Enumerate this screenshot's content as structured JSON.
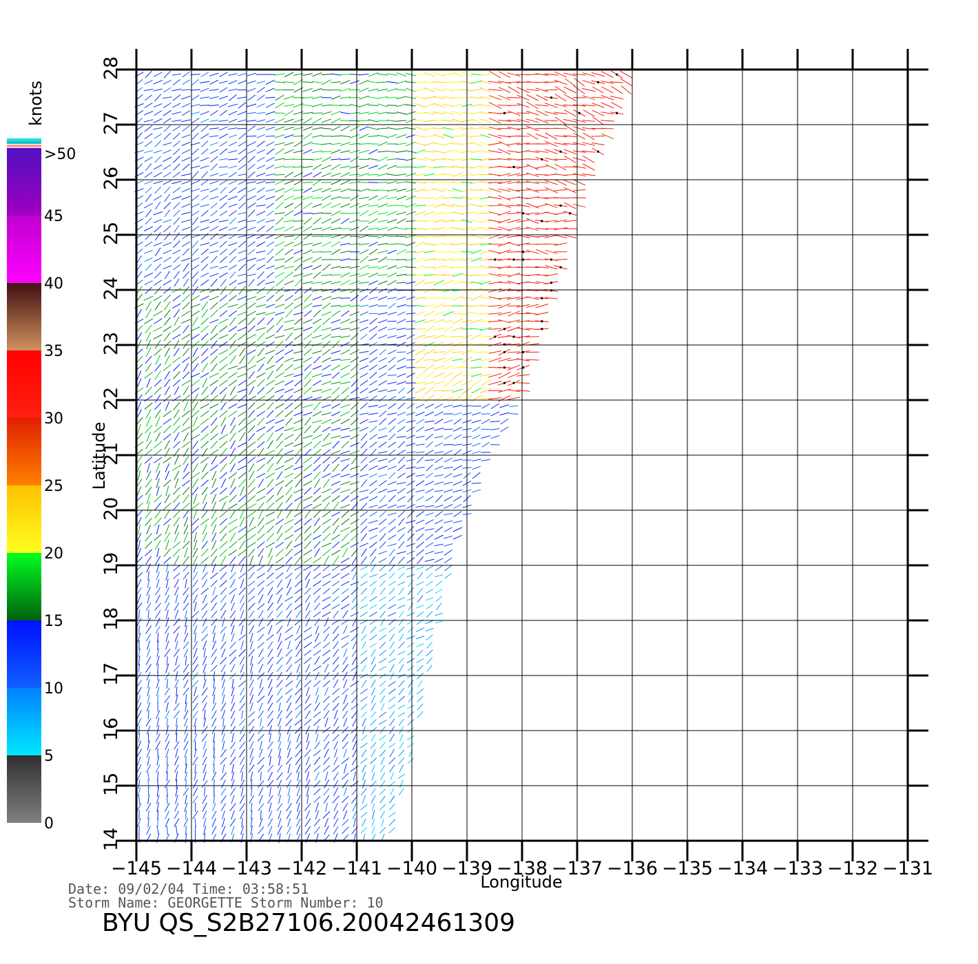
{
  "chart_data": {
    "type": "vector_field",
    "xlabel": "Longitude",
    "ylabel": "Latitude",
    "xlim": [
      -145,
      -131
    ],
    "ylim": [
      14,
      28
    ],
    "x_ticks": [
      "-145",
      "-144",
      "-143",
      "-142",
      "-141",
      "-140",
      "-139",
      "-138",
      "-137",
      "-136",
      "-135",
      "-134",
      "-133",
      "-132",
      "-131"
    ],
    "y_ticks": [
      "14",
      "15",
      "16",
      "17",
      "18",
      "19",
      "20",
      "21",
      "22",
      "23",
      "24",
      "25",
      "26",
      "27",
      "28"
    ],
    "grid": true,
    "colorbar": {
      "units": "knots",
      "labels": [
        ">50",
        "45",
        "40",
        "35",
        "30",
        "25",
        "20",
        "15",
        "10",
        "5",
        "0"
      ],
      "bands": [
        {
          "from": 0,
          "to": 5,
          "colors": [
            "#808080",
            "#303030"
          ]
        },
        {
          "from": 5,
          "to": 10,
          "colors": [
            "#00e8ff",
            "#0080ff"
          ]
        },
        {
          "from": 10,
          "to": 15,
          "colors": [
            "#1060ff",
            "#0010ff"
          ]
        },
        {
          "from": 15,
          "to": 20,
          "colors": [
            "#006010",
            "#00ff20"
          ]
        },
        {
          "from": 20,
          "to": 25,
          "colors": [
            "#ffff20",
            "#ffc000"
          ]
        },
        {
          "from": 25,
          "to": 30,
          "colors": [
            "#ff8000",
            "#e02000"
          ]
        },
        {
          "from": 30,
          "to": 35,
          "colors": [
            "#ff2010",
            "#ff0000"
          ]
        },
        {
          "from": 35,
          "to": 40,
          "colors": [
            "#d09060",
            "#401010"
          ]
        },
        {
          "from": 40,
          "to": 45,
          "colors": [
            "#ff00ff",
            "#c000d0"
          ]
        },
        {
          "from": 45,
          "to": 50,
          "colors": [
            "#a000c0",
            "#5010c0"
          ]
        }
      ],
      "overflow_colors": [
        "#ff9999",
        "#20c0c0",
        "#20e0e0"
      ]
    },
    "swath": {
      "east_edge_lat": [
        14,
        15.5,
        19,
        21,
        22,
        24,
        26,
        28
      ],
      "east_edge_lon": [
        -140.4,
        -140.0,
        -139.3,
        -138.6,
        -138.0,
        -137.4,
        -136.8,
        -135.9
      ]
    },
    "speed_zones": [
      {
        "lat_min": 14,
        "lat_max": 19,
        "lon_min": -145,
        "lon_max": -141,
        "knots": 12
      },
      {
        "lat_min": 14,
        "lat_max": 20,
        "lon_min": -141,
        "lon_max": -139,
        "knots": 8
      },
      {
        "lat_min": 19,
        "lat_max": 24,
        "lon_min": -145,
        "lon_max": -141,
        "knots": 16
      },
      {
        "lat_min": 19,
        "lat_max": 22,
        "lon_min": -141,
        "lon_max": -139,
        "knots": 12
      },
      {
        "lat_min": 24,
        "lat_max": 28,
        "lon_min": -145,
        "lon_max": -142.5,
        "knots": 12
      },
      {
        "lat_min": 24,
        "lat_max": 28,
        "lon_min": -142.5,
        "lon_max": -140,
        "knots": 17
      },
      {
        "lat_min": 22,
        "lat_max": 28,
        "lon_min": -140,
        "lon_max": -138.6,
        "knots": 22
      },
      {
        "lat_min": 22,
        "lat_max": 28,
        "lon_min": -138.6,
        "lon_max": -131,
        "knots": 31
      }
    ],
    "info": {
      "date_line": "Date: 09/02/04   Time: 03:58:51",
      "storm_line": "Storm Name: GEORGETTE   Storm Number: 10",
      "title": "BYU  QS_S2B27106.20042461309"
    }
  }
}
